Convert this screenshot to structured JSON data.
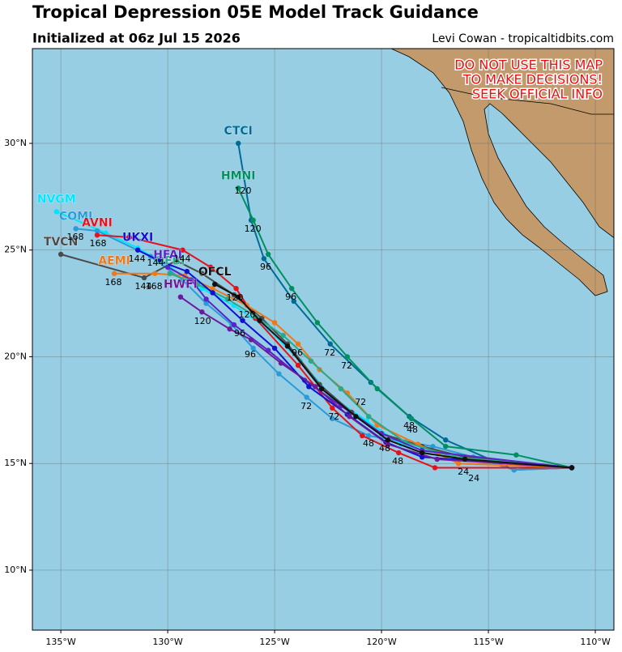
{
  "chart_data": {
    "type": "line",
    "title": "Tropical Depression 05E Model Track Guidance",
    "subtitle": "Initialized at 06z Jul 15 2026",
    "credit": "Levi Cowan - tropicaltidbits.com",
    "warning": [
      "DO NOT USE THIS MAP",
      "TO MAKE DECISIONS!",
      "SEEK OFFICIAL INFO"
    ],
    "xlim": [
      -136.33,
      -109.13
    ],
    "ylim": [
      7.19,
      34.44
    ],
    "xticks": [
      {
        "value": -135,
        "label": "135°W"
      },
      {
        "value": -130,
        "label": "130°W"
      },
      {
        "value": -125,
        "label": "125°W"
      },
      {
        "value": -120,
        "label": "120°W"
      },
      {
        "value": -115,
        "label": "115°W"
      },
      {
        "value": -110,
        "label": "110°W"
      }
    ],
    "yticks": [
      {
        "value": 10,
        "label": "10°N"
      },
      {
        "value": 15,
        "label": "15°N"
      },
      {
        "value": 20,
        "label": "20°N"
      },
      {
        "value": 25,
        "label": "25°N"
      },
      {
        "value": 30,
        "label": "30°N"
      }
    ],
    "grid": true,
    "series": [
      {
        "name": "CTCI",
        "color": "#006b96",
        "x": [
          -111.1,
          -113.8,
          -117.0,
          -118.7,
          -120.5,
          -122.4,
          -124.1,
          -125.5,
          -126.1,
          -126.7
        ],
        "values": [
          14.8,
          14.7,
          16.1,
          17.2,
          18.8,
          20.6,
          22.6,
          24.6,
          26.4,
          30.0
        ]
      },
      {
        "name": "HMNI",
        "color": "#009060",
        "x": [
          -111.1,
          -113.7,
          -117.0,
          -118.6,
          -120.2,
          -121.6,
          -123.0,
          -124.2,
          -125.3,
          -126.0,
          -126.7
        ],
        "values": [
          14.8,
          15.4,
          15.8,
          17.1,
          18.5,
          20.0,
          21.6,
          23.2,
          24.8,
          26.4,
          27.9
        ]
      },
      {
        "name": "NVGM",
        "color": "#00e5ff",
        "x": [
          -111.1,
          -117.4,
          -119.1,
          -120.7,
          -122.3,
          -123.8,
          -125.3,
          -126.9,
          -128.4,
          -129.9,
          -131.4,
          -132.9,
          -135.2
        ],
        "values": [
          14.8,
          15.5,
          15.9,
          17.0,
          18.1,
          19.8,
          21.3,
          22.4,
          23.2,
          24.2,
          25.1,
          25.8,
          26.8
        ]
      },
      {
        "name": "COMI",
        "color": "#2a9ad8",
        "x": [
          -111.1,
          -113.8,
          -115.7,
          -117.6,
          -120.6,
          -122.3,
          -123.5,
          -124.8,
          -126.0,
          -127.0,
          -128.2,
          -129.3,
          -130.8,
          -133.3,
          -134.3
        ],
        "values": [
          14.8,
          14.7,
          15.3,
          15.8,
          16.3,
          17.1,
          18.1,
          19.2,
          20.4,
          21.5,
          22.5,
          23.6,
          24.7,
          25.9,
          26.0
        ]
      },
      {
        "name": "AVNI",
        "color": "#e8101a",
        "x": [
          -111.1,
          -117.5,
          -119.2,
          -120.9,
          -122.3,
          -123.9,
          -125.9,
          -126.8,
          -128.0,
          -129.3,
          -131.8,
          -133.3
        ],
        "values": [
          14.8,
          14.8,
          15.5,
          16.3,
          17.6,
          19.6,
          21.8,
          23.2,
          24.2,
          25.0,
          25.6,
          25.7
        ]
      },
      {
        "name": "TVCN",
        "color": "#4a4a4a",
        "x": [
          -111.1,
          -116.1,
          -118.1,
          -120.0,
          -121.4,
          -122.9,
          -124.4,
          -125.6,
          -126.9,
          -128.4,
          -129.6,
          -131.1,
          -135.0
        ],
        "values": [
          14.8,
          15.3,
          15.8,
          16.4,
          17.4,
          18.7,
          20.6,
          21.8,
          22.9,
          23.9,
          24.5,
          23.7,
          24.8
        ]
      },
      {
        "name": "AEMI",
        "color": "#f07818",
        "x": [
          -111.1,
          -116.4,
          -118.3,
          -120.2,
          -121.6,
          -122.9,
          -123.9,
          -125.0,
          -126.3,
          -127.9,
          -129.2,
          -130.6,
          -132.5
        ],
        "values": [
          14.8,
          15.0,
          15.9,
          16.8,
          18.3,
          19.4,
          20.6,
          21.6,
          22.4,
          23.2,
          23.8,
          23.9,
          23.9
        ]
      },
      {
        "name": "OFBI",
        "color": "#2aa88a",
        "x": [
          -111.1,
          -116.6,
          -118.9,
          -120.6,
          -121.9,
          -123.3,
          -124.6,
          -125.9,
          -127.2,
          -128.6,
          -129.9
        ],
        "values": [
          14.8,
          15.3,
          16.0,
          17.2,
          18.5,
          19.8,
          21.0,
          21.9,
          22.7,
          23.4,
          23.9
        ]
      },
      {
        "name": "HFAI",
        "color": "#5a24c8",
        "x": [
          -111.1,
          -118.1,
          -120.0,
          -121.9,
          -123.6,
          -125.3,
          -126.9,
          -128.2,
          -128.9,
          -130.0
        ],
        "values": [
          14.8,
          15.6,
          16.4,
          17.7,
          18.9,
          20.3,
          21.5,
          22.7,
          23.6,
          24.2
        ]
      },
      {
        "name": "UKXI",
        "color": "#1010d0",
        "x": [
          -111.1,
          -118.1,
          -119.8,
          -121.6,
          -123.4,
          -125.0,
          -126.5,
          -127.9,
          -129.1,
          -130.4,
          -131.4
        ],
        "values": [
          14.8,
          15.3,
          16.0,
          17.3,
          18.6,
          20.4,
          21.7,
          23.0,
          24.0,
          24.5,
          25.0
        ]
      },
      {
        "name": "HWFI",
        "color": "#6a1a9a",
        "x": [
          -111.1,
          -117.4,
          -119.7,
          -121.5,
          -123.1,
          -124.7,
          -126.1,
          -127.1,
          -128.4,
          -129.4
        ],
        "values": [
          14.8,
          15.2,
          15.9,
          17.2,
          18.6,
          19.7,
          20.8,
          21.3,
          22.1,
          22.8
        ]
      },
      {
        "name": "OFCL",
        "color": "#111111",
        "x": [
          -111.1,
          -116.1,
          -118.1,
          -119.7,
          -121.2,
          -122.8,
          -124.4,
          -125.7,
          -126.7,
          -127.8
        ],
        "values": [
          14.8,
          15.2,
          15.5,
          16.1,
          17.2,
          18.5,
          20.5,
          21.7,
          22.8,
          23.4
        ]
      }
    ],
    "annotations": [
      {
        "text": "168",
        "x": -134.32,
        "y": 25.6
      },
      {
        "text": "168",
        "x": -133.26,
        "y": 25.29
      },
      {
        "text": "168",
        "x": -132.54,
        "y": 23.47
      },
      {
        "text": "168",
        "x": -130.64,
        "y": 23.28
      },
      {
        "text": "144",
        "x": -131.44,
        "y": 24.57
      },
      {
        "text": "144",
        "x": -129.32,
        "y": 24.57
      },
      {
        "text": "144",
        "x": -131.14,
        "y": 23.28
      },
      {
        "text": "144",
        "x": -130.57,
        "y": 24.38
      },
      {
        "text": "120",
        "x": -126.48,
        "y": 27.76
      },
      {
        "text": "120",
        "x": -126.02,
        "y": 25.98
      },
      {
        "text": "120",
        "x": -128.37,
        "y": 21.65
      },
      {
        "text": "120",
        "x": -126.86,
        "y": 22.75
      },
      {
        "text": "120",
        "x": -126.29,
        "y": 21.95
      },
      {
        "text": "96",
        "x": -125.42,
        "y": 24.19
      },
      {
        "text": "96",
        "x": -124.24,
        "y": 22.79
      },
      {
        "text": "96",
        "x": -126.63,
        "y": 21.08
      },
      {
        "text": "96",
        "x": -126.14,
        "y": 20.09
      },
      {
        "text": "96",
        "x": -123.94,
        "y": 20.17
      },
      {
        "text": "72",
        "x": -122.42,
        "y": 20.17
      },
      {
        "text": "72",
        "x": -121.63,
        "y": 19.56
      },
      {
        "text": "72",
        "x": -123.52,
        "y": 17.67
      },
      {
        "text": "72",
        "x": -122.23,
        "y": 17.17
      },
      {
        "text": "72",
        "x": -120.98,
        "y": 17.86
      },
      {
        "text": "48",
        "x": -118.71,
        "y": 16.76
      },
      {
        "text": "48",
        "x": -118.56,
        "y": 16.57
      },
      {
        "text": "48",
        "x": -120.61,
        "y": 15.92
      },
      {
        "text": "48",
        "x": -119.24,
        "y": 15.09
      },
      {
        "text": "48",
        "x": -119.85,
        "y": 15.69
      },
      {
        "text": "24",
        "x": -115.68,
        "y": 14.29
      },
      {
        "text": "24",
        "x": -116.17,
        "y": 14.59
      }
    ]
  }
}
